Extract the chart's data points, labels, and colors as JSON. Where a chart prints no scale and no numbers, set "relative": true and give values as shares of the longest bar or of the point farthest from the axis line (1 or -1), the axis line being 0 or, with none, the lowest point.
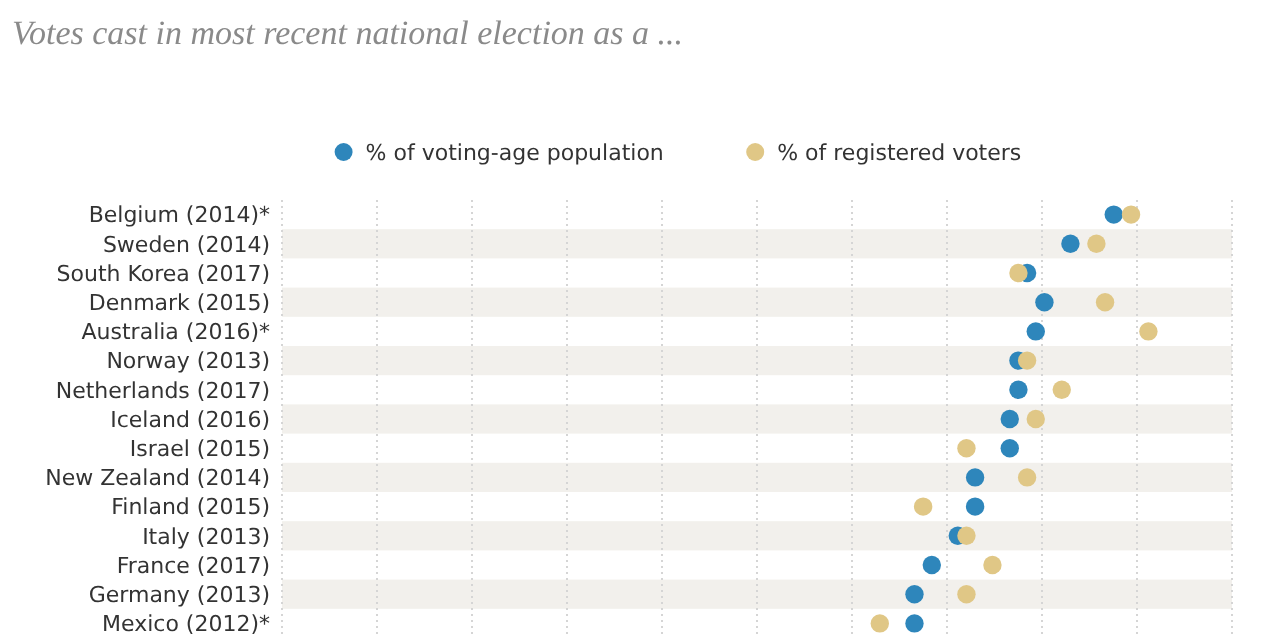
{
  "chart_data": {
    "type": "scatter",
    "title": "Votes cast in most recent national election as a ...",
    "orientation": "horizontal",
    "relative": true,
    "grid": "x",
    "legend": "top",
    "marker": "circle",
    "categories": [
      "Belgium (2014)*",
      "Sweden (2014)",
      "South Korea (2017)",
      "Denmark (2015)",
      "Australia (2016)*",
      "Norway (2013)",
      "Netherlands (2017)",
      "Iceland (2016)",
      "Israel (2015)",
      "New Zealand (2014)",
      "Finland (2015)",
      "Italy (2013)",
      "France (2017)",
      "Germany (2013)",
      "Mexico (2012)*"
    ],
    "series": [
      {
        "name": "% of voting-age population",
        "color": "#2e86bb",
        "values": [
          0.96,
          0.91,
          0.86,
          0.88,
          0.87,
          0.85,
          0.85,
          0.84,
          0.84,
          0.8,
          0.8,
          0.78,
          0.75,
          0.73,
          0.73
        ]
      },
      {
        "name": "% of registered voters",
        "color": "#e0c786",
        "values": [
          0.98,
          0.94,
          0.85,
          0.95,
          1,
          0.86,
          0.9,
          0.87,
          0.79,
          0.86,
          0.74,
          0.79,
          0.82,
          0.79,
          0.69
        ]
      }
    ]
  }
}
